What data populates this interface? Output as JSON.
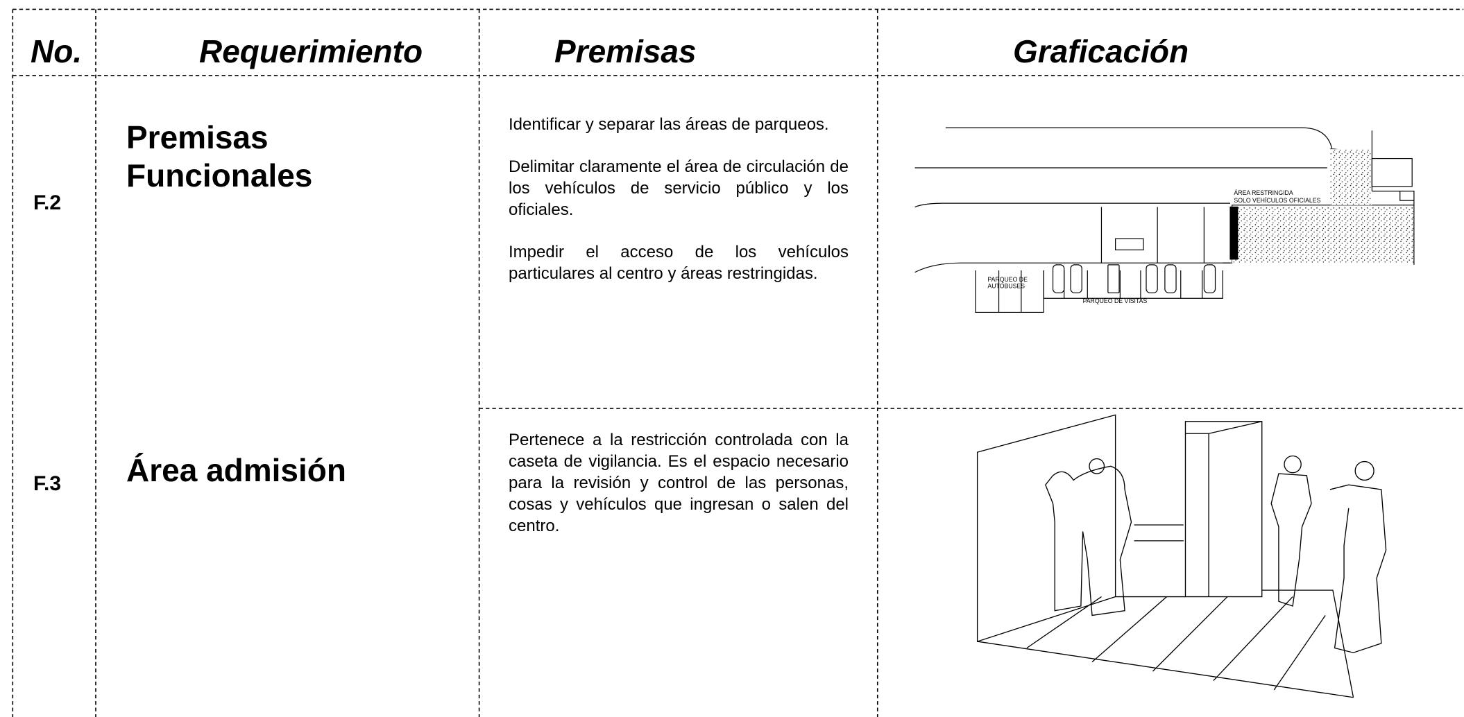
{
  "header": {
    "columns": [
      "No.",
      "Requerimiento",
      "Premisas",
      "Graficación"
    ]
  },
  "rows": [
    {
      "no": "F.2",
      "requirement": [
        "Premisas",
        "Funcionales"
      ],
      "premises": [
        "Identificar y separar las áreas de parqueos.",
        "Delimitar claramente el área de circulación de los vehículos de servicio público y los oficiales.",
        "Impedir el acceso de los vehículos particulares al centro y áreas restringidas."
      ],
      "drawing_labels": [
        "ÁREA RESTRINGIDA",
        "SOLO VEHÍCULOS OFICIALES",
        "PARQUEO DE",
        "AUTOBUSES",
        "PARQUEO DE VISITAS"
      ]
    },
    {
      "no": "F.3",
      "requirement": [
        "Área admisión"
      ],
      "premises": [
        "Pertenece a la restricción controlada con la caseta de vigilancia.  Es el espacio necesario para la revisión y control de las personas, cosas y vehículos que ingresan o salen del centro."
      ]
    }
  ]
}
